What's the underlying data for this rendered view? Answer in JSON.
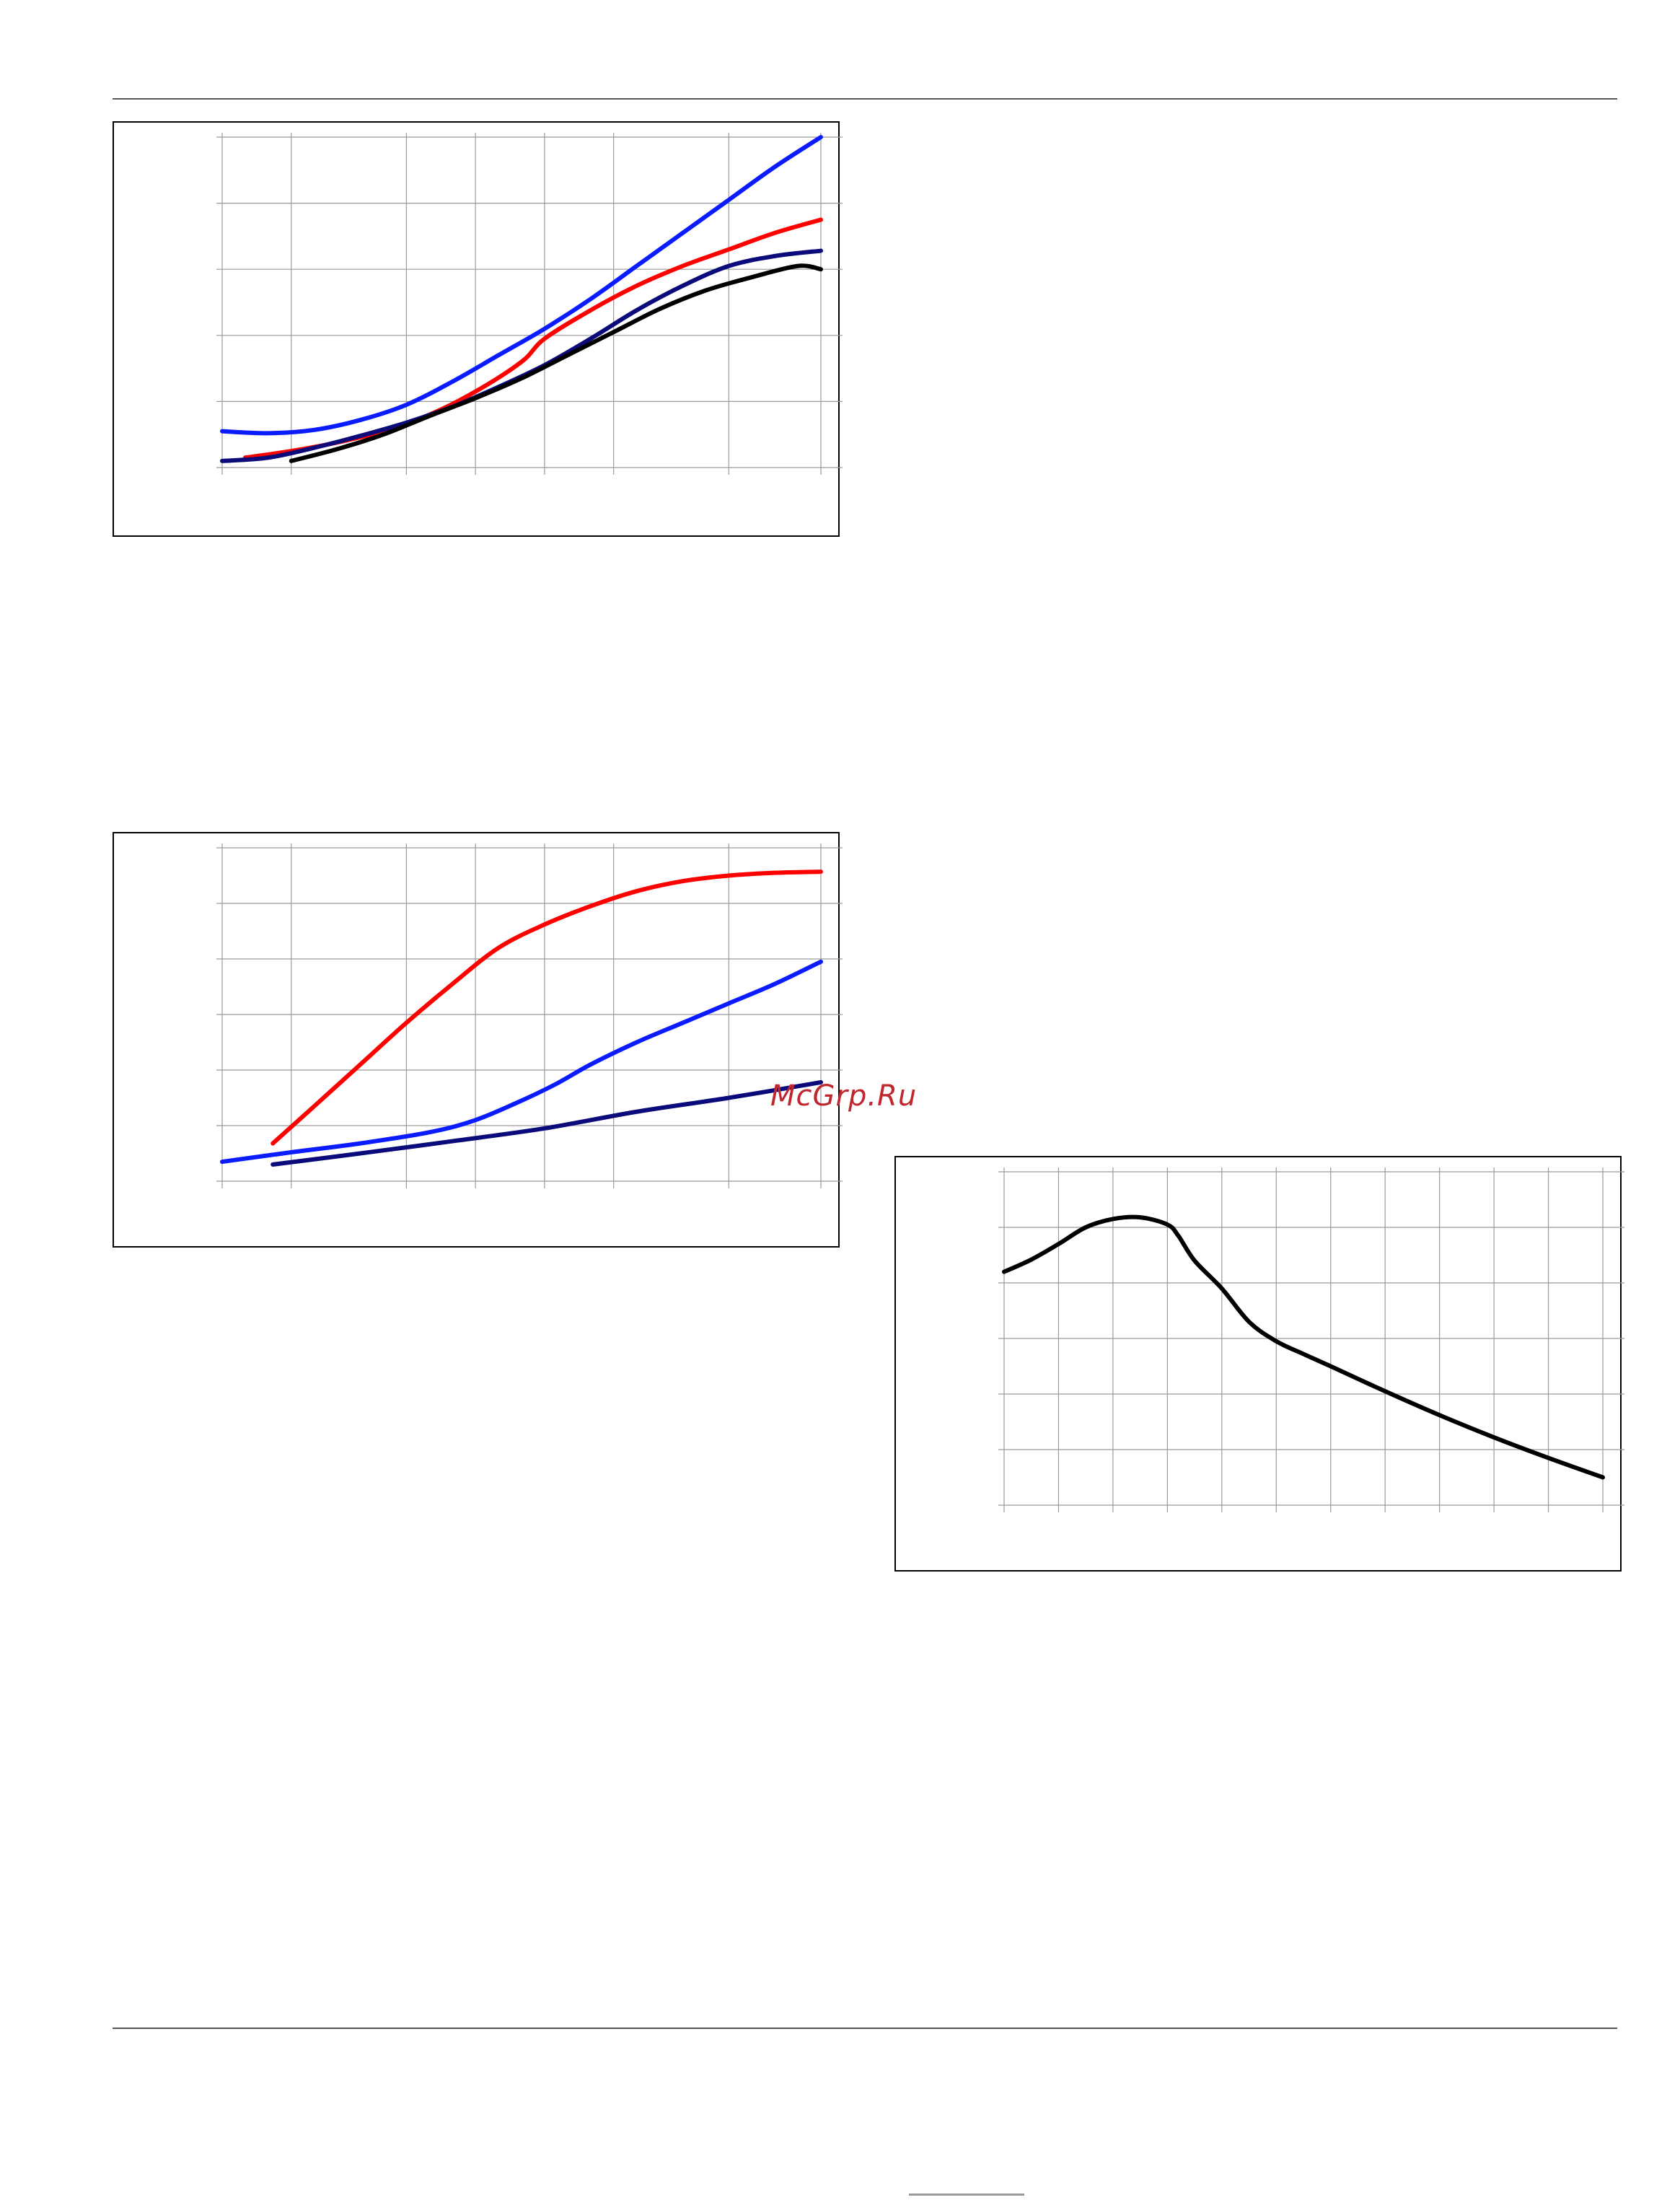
{
  "watermark": "McGrp.Ru",
  "colors": {
    "red": "#ff0000",
    "blue": "#0a1cff",
    "navy": "#0a0a7a",
    "black": "#000000",
    "grid": "#9a9a9a"
  },
  "chart_data": [
    {
      "id": "chart-top-left",
      "type": "line",
      "grid": true,
      "xlim": [
        0,
        26
      ],
      "ylim": [
        0,
        5
      ],
      "xticks": [
        0,
        3,
        8,
        11,
        14,
        17,
        22,
        26
      ],
      "yticks": [
        0,
        1,
        2,
        3,
        4,
        5
      ],
      "series": [
        {
          "color": "blue",
          "x": [
            0,
            2,
            4,
            6,
            8,
            10,
            12,
            14,
            16,
            18,
            20,
            22,
            24,
            26
          ],
          "y": [
            0.55,
            0.52,
            0.57,
            0.72,
            0.95,
            1.3,
            1.7,
            2.1,
            2.55,
            3.05,
            3.55,
            4.05,
            4.55,
            5.0
          ]
        },
        {
          "color": "red",
          "x": [
            1,
            3,
            5,
            7,
            9,
            11,
            13,
            14,
            16,
            18,
            20,
            22,
            24,
            26
          ],
          "y": [
            0.15,
            0.25,
            0.38,
            0.55,
            0.8,
            1.15,
            1.6,
            1.95,
            2.38,
            2.75,
            3.05,
            3.3,
            3.55,
            3.75
          ]
        },
        {
          "color": "navy",
          "x": [
            0,
            2,
            4,
            6,
            8,
            10,
            12,
            14,
            16,
            18,
            20,
            22,
            24,
            26
          ],
          "y": [
            0.1,
            0.15,
            0.3,
            0.48,
            0.68,
            0.92,
            1.22,
            1.55,
            1.95,
            2.38,
            2.75,
            3.05,
            3.2,
            3.28
          ]
        },
        {
          "color": "black",
          "x": [
            3,
            5,
            7,
            9,
            11,
            13,
            15,
            17,
            19,
            21,
            23,
            25,
            26
          ],
          "y": [
            0.1,
            0.28,
            0.5,
            0.78,
            1.05,
            1.35,
            1.7,
            2.05,
            2.4,
            2.68,
            2.88,
            3.05,
            3.0
          ]
        }
      ]
    },
    {
      "id": "chart-middle-left",
      "type": "line",
      "grid": true,
      "xlim": [
        0,
        26
      ],
      "ylim": [
        0,
        6
      ],
      "xticks": [
        0,
        3,
        8,
        11,
        14,
        17,
        22,
        26
      ],
      "yticks": [
        0,
        1,
        2,
        3,
        4,
        5,
        6
      ],
      "series": [
        {
          "color": "red",
          "x": [
            2.2,
            4,
            6,
            8,
            10,
            12,
            14,
            16,
            18,
            20,
            22,
            24,
            26
          ],
          "y": [
            0.68,
            1.35,
            2.1,
            2.85,
            3.55,
            4.2,
            4.62,
            4.95,
            5.22,
            5.4,
            5.5,
            5.55,
            5.57
          ]
        },
        {
          "color": "blue",
          "x": [
            0,
            3,
            6,
            9,
            11,
            13,
            14.5,
            16,
            18,
            20,
            22,
            24,
            26
          ],
          "y": [
            0.35,
            0.52,
            0.68,
            0.88,
            1.1,
            1.45,
            1.75,
            2.1,
            2.5,
            2.85,
            3.2,
            3.55,
            3.95
          ]
        },
        {
          "color": "navy",
          "x": [
            2.2,
            6,
            10,
            14,
            18,
            22,
            26
          ],
          "y": [
            0.3,
            0.5,
            0.72,
            0.95,
            1.25,
            1.5,
            1.78
          ]
        }
      ]
    },
    {
      "id": "chart-right",
      "type": "line",
      "grid": true,
      "xlim": [
        0,
        11
      ],
      "ylim": [
        0,
        6
      ],
      "xticks": [
        0,
        1,
        2,
        3,
        4,
        5,
        6,
        7,
        8,
        9,
        10,
        11
      ],
      "yticks": [
        0,
        1,
        2,
        3,
        4,
        5,
        6
      ],
      "series": [
        {
          "color": "black",
          "x": [
            0,
            0.5,
            1,
            1.5,
            2,
            2.5,
            3,
            3.2,
            3.5,
            4,
            4.5,
            5,
            5.5,
            6,
            7,
            8,
            9,
            10,
            11
          ],
          "y": [
            4.2,
            4.42,
            4.7,
            5.0,
            5.15,
            5.18,
            5.05,
            4.85,
            4.4,
            3.9,
            3.3,
            2.95,
            2.72,
            2.5,
            2.05,
            1.62,
            1.22,
            0.85,
            0.5
          ]
        }
      ]
    }
  ]
}
